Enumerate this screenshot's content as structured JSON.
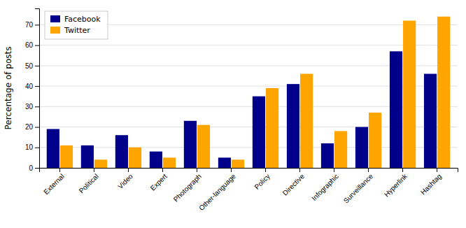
{
  "chart_data": {
    "type": "bar",
    "ylabel": "Percentage of posts",
    "categories": [
      "External",
      "Political",
      "Video",
      "Expert",
      "Photograph",
      "Other-language",
      "Policy",
      "Directive",
      "Infographic",
      "Surveillance",
      "Hyperlink",
      "Hashtag"
    ],
    "series": [
      {
        "name": "Facebook",
        "color": "#00008B",
        "values": [
          19,
          11,
          16,
          8,
          23,
          5,
          35,
          41,
          12,
          20,
          57,
          46
        ]
      },
      {
        "name": "Twitter",
        "color": "#FFA500",
        "values": [
          11,
          4,
          10,
          5,
          21,
          4,
          39,
          46,
          18,
          27,
          72,
          74
        ]
      }
    ],
    "ylim": [
      0,
      78
    ],
    "yticks": [
      0,
      10,
      20,
      30,
      40,
      50,
      60,
      70
    ],
    "grid": true,
    "legend": "upper left"
  }
}
